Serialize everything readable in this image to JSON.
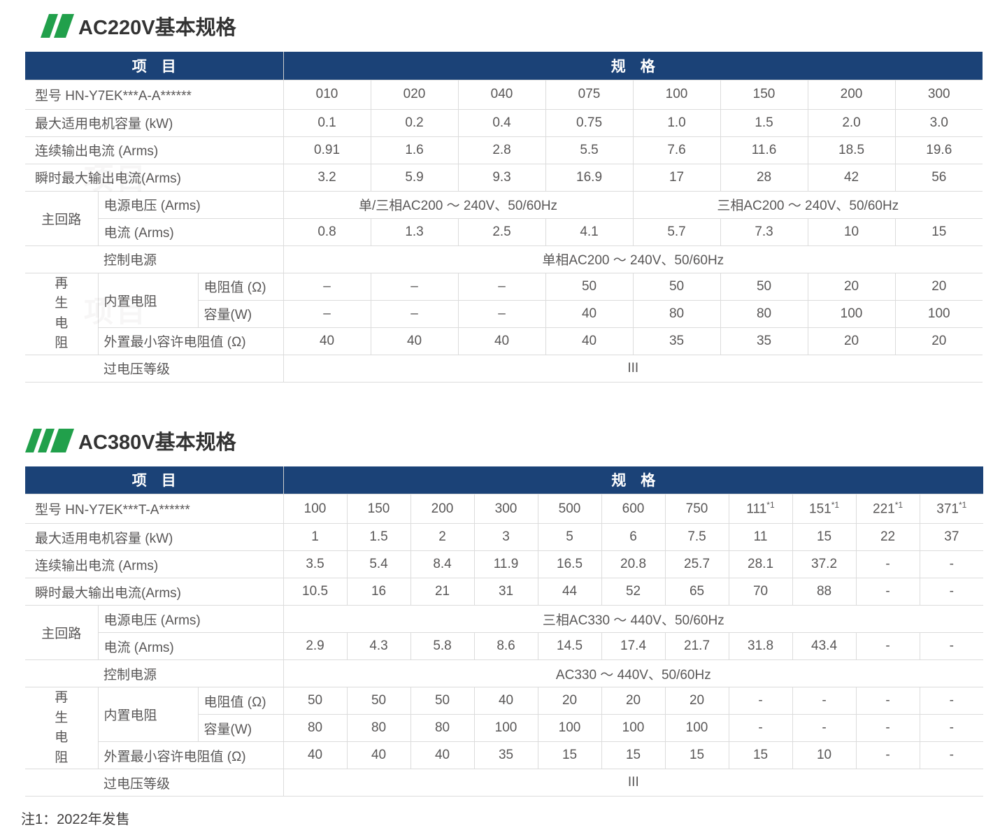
{
  "page": {
    "footnote": "注1：2022年发售",
    "watermark": "项目"
  },
  "colors": {
    "header_bg": "#1B4277",
    "accent_green": "#21A04B",
    "border": "#DCDCDC",
    "text": "#595757"
  },
  "t1": {
    "title": "AC220V基本规格",
    "header": {
      "item": "项　目",
      "spec": "规　格"
    },
    "model": {
      "label": "型号 HN-Y7EK***A-A******",
      "values": [
        "010",
        "020",
        "040",
        "075",
        "100",
        "150",
        "200",
        "300"
      ]
    },
    "motor": {
      "label": "最大适用电机容量 (kW)",
      "values": [
        "0.1",
        "0.2",
        "0.4",
        "0.75",
        "1.0",
        "1.5",
        "2.0",
        "3.0"
      ]
    },
    "cont": {
      "label": "连续输出电流 (Arms)",
      "values": [
        "0.91",
        "1.6",
        "2.8",
        "5.5",
        "7.6",
        "11.6",
        "18.5",
        "19.6"
      ]
    },
    "peak": {
      "label": "瞬时最大输出电流(Arms)",
      "values": [
        "3.2",
        "5.9",
        "9.3",
        "16.9",
        "17",
        "28",
        "42",
        "56"
      ]
    },
    "main_circuit_label": "主回路",
    "voltage": {
      "label": "电源电压 (Arms)",
      "span1": "单/三相AC200 ～ 240V、50/60Hz",
      "span2": "三相AC200 ～ 240V、50/60Hz"
    },
    "current": {
      "label": "电流 (Arms)",
      "values": [
        "0.8",
        "1.3",
        "2.5",
        "4.1",
        "5.7",
        "7.3",
        "10",
        "15"
      ]
    },
    "control": {
      "label": "控制电源",
      "value": "单相AC200 ～ 240V、50/60Hz"
    },
    "regen_label": "再生电阻",
    "builtin_label": "内置电阻",
    "resistance": {
      "label": "电阻值 (Ω)",
      "values": [
        "–",
        "–",
        "–",
        "50",
        "50",
        "50",
        "20",
        "20"
      ]
    },
    "capacity": {
      "label": "容量(W)",
      "values": [
        "–",
        "–",
        "–",
        "40",
        "80",
        "80",
        "100",
        "100"
      ]
    },
    "ext_min": {
      "label": "外置最小容许电阻值 (Ω)",
      "values": [
        "40",
        "40",
        "40",
        "40",
        "35",
        "35",
        "20",
        "20"
      ]
    },
    "overvoltage": {
      "label": "过电压等级",
      "value": "III"
    }
  },
  "t2": {
    "title": "AC380V基本规格",
    "header": {
      "item": "项　目",
      "spec": "规　格"
    },
    "model": {
      "label": "型号 HN-Y7EK***T-A******",
      "values": [
        "100",
        "150",
        "200",
        "300",
        "500",
        "600",
        "750",
        "111*1",
        "151*1",
        "221*1",
        "371*1"
      ]
    },
    "motor": {
      "label": "最大适用电机容量 (kW)",
      "values": [
        "1",
        "1.5",
        "2",
        "3",
        "5",
        "6",
        "7.5",
        "11",
        "15",
        "22",
        "37"
      ]
    },
    "cont": {
      "label": "连续输出电流 (Arms)",
      "values": [
        "3.5",
        "5.4",
        "8.4",
        "11.9",
        "16.5",
        "20.8",
        "25.7",
        "28.1",
        "37.2",
        "-",
        "-"
      ]
    },
    "peak": {
      "label": "瞬时最大输出电流(Arms)",
      "values": [
        "10.5",
        "16",
        "21",
        "31",
        "44",
        "52",
        "65",
        "70",
        "88",
        "-",
        "-"
      ]
    },
    "main_circuit_label": "主回路",
    "voltage": {
      "label": "电源电压 (Arms)",
      "span": "三相AC330 ～ 440V、50/60Hz"
    },
    "current": {
      "label": "电流 (Arms)",
      "values": [
        "2.9",
        "4.3",
        "5.8",
        "8.6",
        "14.5",
        "17.4",
        "21.7",
        "31.8",
        "43.4",
        "-",
        "-"
      ]
    },
    "control": {
      "label": "控制电源",
      "value": "AC330 ～ 440V、50/60Hz"
    },
    "regen_label": "再生电阻",
    "builtin_label": "内置电阻",
    "resistance": {
      "label": "电阻值 (Ω)",
      "values": [
        "50",
        "50",
        "50",
        "40",
        "20",
        "20",
        "20",
        "-",
        "-",
        "-",
        "-"
      ]
    },
    "capacity": {
      "label": "容量(W)",
      "values": [
        "80",
        "80",
        "80",
        "100",
        "100",
        "100",
        "100",
        "-",
        "-",
        "-",
        "-"
      ]
    },
    "ext_min": {
      "label": "外置最小容许电阻值 (Ω)",
      "values": [
        "40",
        "40",
        "40",
        "35",
        "15",
        "15",
        "15",
        "15",
        "10",
        "-",
        "-"
      ]
    },
    "overvoltage": {
      "label": "过电压等级",
      "value": "III"
    }
  }
}
